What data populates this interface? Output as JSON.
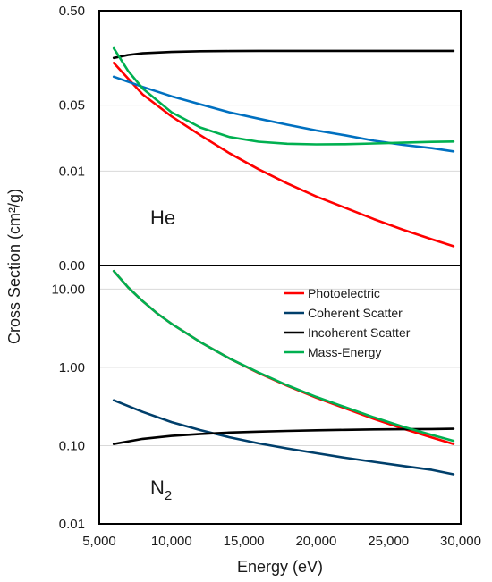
{
  "chart_data": [
    {
      "type": "line",
      "panel": "He",
      "label_text": "He",
      "ylabel": "Cross Section (cm²/g)",
      "yscale": "log",
      "ylim": [
        0.001,
        0.5
      ],
      "ytick_values": [
        0.001,
        0.01,
        0.05,
        0.5
      ],
      "ytick_labels": [
        "0.00",
        "0.01",
        "0.05",
        "0.50"
      ],
      "xlim": [
        5000,
        30000
      ],
      "grid": "horizontal",
      "series": [
        {
          "name": "Photoelectric",
          "color": "#ff0000",
          "x": [
            6000,
            8000,
            10000,
            12000,
            14000,
            16000,
            18000,
            20000,
            22000,
            24000,
            26000,
            28000,
            29500
          ],
          "y": [
            0.14,
            0.065,
            0.038,
            0.024,
            0.0155,
            0.0105,
            0.0074,
            0.0054,
            0.0041,
            0.0031,
            0.0024,
            0.0019,
            0.0016
          ]
        },
        {
          "name": "Coherent Scatter",
          "color": "#0070c0",
          "x": [
            6000,
            8000,
            10000,
            12000,
            14000,
            16000,
            18000,
            20000,
            22000,
            24000,
            26000,
            28000,
            29500
          ],
          "y": [
            0.1,
            0.078,
            0.062,
            0.051,
            0.042,
            0.036,
            0.031,
            0.027,
            0.024,
            0.021,
            0.019,
            0.0175,
            0.0162
          ]
        },
        {
          "name": "Incoherent Scatter",
          "color": "#000000",
          "x": [
            6000,
            7000,
            8000,
            10000,
            12000,
            14000,
            16000,
            18000,
            20000,
            22000,
            24000,
            26000,
            28000,
            29500
          ],
          "y": [
            0.158,
            0.17,
            0.177,
            0.183,
            0.186,
            0.187,
            0.188,
            0.188,
            0.188,
            0.188,
            0.188,
            0.188,
            0.188,
            0.188
          ]
        },
        {
          "name": "Mass-Energy",
          "color": "#00b050",
          "x": [
            6000,
            7000,
            8000,
            10000,
            12000,
            14000,
            16000,
            18000,
            20000,
            22000,
            24000,
            26000,
            28000,
            29500
          ],
          "y": [
            0.2,
            0.115,
            0.075,
            0.042,
            0.029,
            0.023,
            0.0205,
            0.0195,
            0.0192,
            0.0193,
            0.0196,
            0.02,
            0.0204,
            0.0206
          ]
        }
      ]
    },
    {
      "type": "line",
      "panel": "N2",
      "label_text": "N",
      "label_subscript": "2",
      "yscale": "log",
      "ylim": [
        0.01,
        20
      ],
      "ytick_values": [
        0.01,
        0.1,
        1,
        10
      ],
      "ytick_labels": [
        "0.01",
        "0.10",
        "1.00",
        "10.00"
      ],
      "xlim": [
        5000,
        30000
      ],
      "xlabel": "Energy (eV)",
      "xtick_values": [
        5000,
        10000,
        15000,
        20000,
        25000,
        30000
      ],
      "xtick_labels": [
        "5,000",
        "10,000",
        "15,000",
        "20,000",
        "25,000",
        "30,000"
      ],
      "grid": "horizontal",
      "legend_position": "top-right",
      "series": [
        {
          "name": "Photoelectric",
          "color": "#ff0000",
          "x": [
            6000,
            7000,
            8000,
            9000,
            10000,
            12000,
            14000,
            16000,
            18000,
            20000,
            22000,
            24000,
            26000,
            28000,
            29500
          ],
          "y": [
            17,
            10.5,
            7.0,
            4.9,
            3.6,
            2.1,
            1.3,
            0.85,
            0.58,
            0.41,
            0.3,
            0.22,
            0.165,
            0.127,
            0.105
          ]
        },
        {
          "name": "Coherent Scatter",
          "color": "#003f6b",
          "x": [
            6000,
            8000,
            10000,
            12000,
            14000,
            16000,
            18000,
            20000,
            22000,
            24000,
            26000,
            28000,
            29500
          ],
          "y": [
            0.38,
            0.27,
            0.2,
            0.158,
            0.128,
            0.107,
            0.092,
            0.08,
            0.07,
            0.062,
            0.055,
            0.049,
            0.043
          ]
        },
        {
          "name": "Incoherent Scatter",
          "color": "#000000",
          "x": [
            6000,
            8000,
            10000,
            12000,
            14000,
            16000,
            18000,
            20000,
            22000,
            24000,
            26000,
            28000,
            29500
          ],
          "y": [
            0.105,
            0.122,
            0.133,
            0.141,
            0.147,
            0.151,
            0.154,
            0.157,
            0.159,
            0.161,
            0.162,
            0.163,
            0.164
          ]
        },
        {
          "name": "Mass-Energy",
          "color": "#00b050",
          "x": [
            6000,
            7000,
            8000,
            9000,
            10000,
            12000,
            14000,
            16000,
            18000,
            20000,
            22000,
            24000,
            26000,
            28000,
            29500
          ],
          "y": [
            17,
            10.5,
            7.0,
            4.9,
            3.6,
            2.1,
            1.3,
            0.86,
            0.59,
            0.42,
            0.31,
            0.23,
            0.175,
            0.137,
            0.115
          ]
        }
      ]
    }
  ]
}
